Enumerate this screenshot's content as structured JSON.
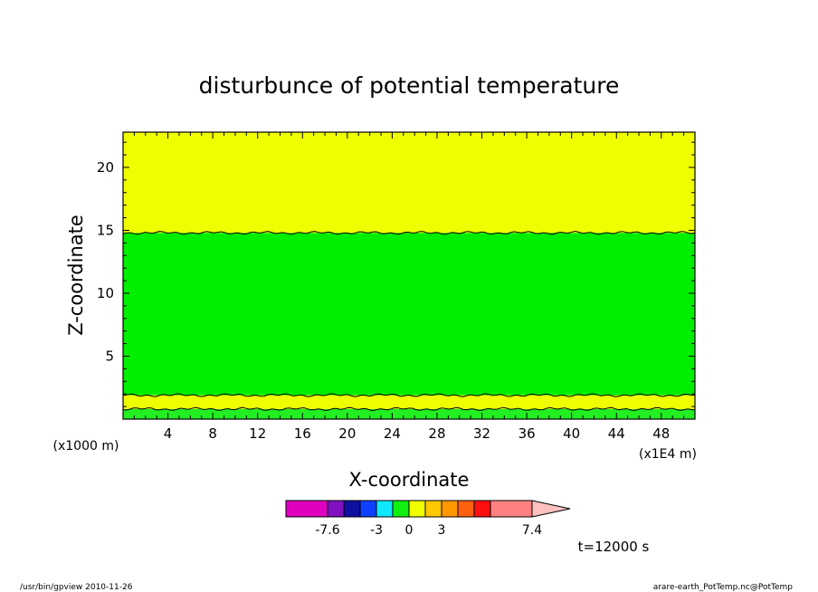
{
  "chart_data": {
    "type": "heatmap",
    "title": "disturbunce of potential temperature",
    "xlabel": "X-coordinate",
    "ylabel": "Z-coordinate",
    "x_unit": "(x1000 m)",
    "x_scale_note": "(x1E4 m)",
    "time_label": "t=12000 s",
    "xlim": [
      0,
      51
    ],
    "ylim": [
      0,
      22.8
    ],
    "x_ticks": [
      4,
      8,
      12,
      16,
      20,
      24,
      28,
      32,
      36,
      40,
      44,
      48
    ],
    "y_ticks": [
      5,
      10,
      15,
      20
    ],
    "grid": false,
    "regions": [
      {
        "z_from": 0,
        "z_to": 0.8,
        "color": "#22ee22"
      },
      {
        "z_from": 0.8,
        "z_to": 1.9,
        "color": "#f0ff00"
      },
      {
        "z_from": 1.9,
        "z_to": 14.8,
        "color": "#00ee00"
      },
      {
        "z_from": 14.8,
        "z_to": 22.8,
        "color": "#f0ff00"
      }
    ],
    "colorbar": {
      "colors": [
        "#e000c0",
        "#8010c0",
        "#1010a0",
        "#1040ff",
        "#10e8ff",
        "#10f010",
        "#f0ff00",
        "#ffc800",
        "#ff9800",
        "#ff6010",
        "#ff1010",
        "#ff8080",
        "#ffc0c0"
      ],
      "labels": [
        {
          "text": "-7.6",
          "index": 0
        },
        {
          "text": "-3",
          "index": 3
        },
        {
          "text": "0",
          "index": 5
        },
        {
          "text": "3",
          "index": 7
        },
        {
          "text": "7.4",
          "index": 11
        }
      ]
    }
  },
  "footer": {
    "left": "/usr/bin/gpview  2010-11-26",
    "right": "arare-earth_PotTemp.nc@PotTemp"
  }
}
